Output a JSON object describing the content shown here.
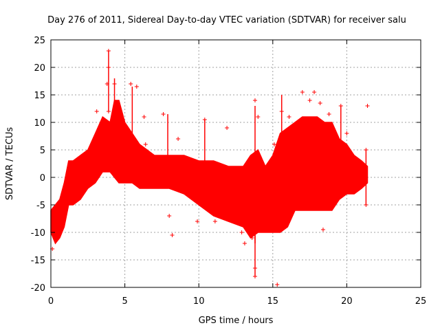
{
  "chart_data": {
    "type": "scatter",
    "title": "Day 276 of 2011, Sidereal Day-to-day VTEC variation (SDTVAR) for receiver salu",
    "xlabel": "GPS time / hours",
    "ylabel": "SDTVAR / TECUs",
    "xlim": [
      0,
      25
    ],
    "ylim": [
      -20,
      25
    ],
    "xticks": [
      0,
      5,
      10,
      15,
      20,
      25
    ],
    "yticks": [
      -20,
      -15,
      -10,
      -5,
      0,
      5,
      10,
      15,
      20,
      25
    ],
    "xtick_labels": [
      "0",
      "5",
      "10",
      "15",
      "20",
      "25"
    ],
    "ytick_labels": [
      "-20",
      "-15",
      "-10",
      "-5",
      "0",
      "5",
      "10",
      "15",
      "20",
      "25"
    ],
    "grid": true,
    "color": "#ff0000",
    "marker": "+",
    "series": [
      {
        "name": "SDTVAR",
        "band_envelope": {
          "x": [
            0,
            0.3,
            0.6,
            0.9,
            1.2,
            1.5,
            2.0,
            2.5,
            3.0,
            3.5,
            4.0,
            4.3,
            4.6,
            5.0,
            5.5,
            6.0,
            6.5,
            7.0,
            7.5,
            8.0,
            9.0,
            10.0,
            10.5,
            11.0,
            12.0,
            13.0,
            13.5,
            14.0,
            14.5,
            15.0,
            15.5,
            16.0,
            16.5,
            17.0,
            17.5,
            18.0,
            18.5,
            19.0,
            19.5,
            20.0,
            20.5,
            21.0,
            21.4
          ],
          "upper": [
            -6,
            -5,
            -4,
            -1,
            3,
            3,
            4,
            5,
            8,
            11,
            10,
            14,
            14,
            10,
            8,
            6,
            5,
            4,
            4,
            4,
            4,
            3,
            3,
            3,
            2,
            2,
            4,
            5,
            2,
            4,
            8,
            9,
            10,
            11,
            11,
            11,
            10,
            10,
            7,
            6,
            4,
            3,
            2
          ],
          "lower": [
            -10,
            -12,
            -11,
            -9,
            -5,
            -5,
            -4,
            -2,
            -1,
            1,
            1,
            0,
            -1,
            -1,
            -1,
            -2,
            -2,
            -2,
            -2,
            -2,
            -3,
            -5,
            -6,
            -7,
            -8,
            -9,
            -11,
            -10,
            -10,
            -10,
            -10,
            -9,
            -6,
            -6,
            -6,
            -6,
            -6,
            -6,
            -4,
            -3,
            -3,
            -2,
            -1
          ]
        },
        "outliers": [
          {
            "x": 3.9,
            "y": 23
          },
          {
            "x": 3.9,
            "y": 20
          },
          {
            "x": 3.8,
            "y": 17
          },
          {
            "x": 4.3,
            "y": 17
          },
          {
            "x": 3.1,
            "y": 12
          },
          {
            "x": 3.9,
            "y": 12
          },
          {
            "x": 5.4,
            "y": 17
          },
          {
            "x": 5.8,
            "y": 16.5
          },
          {
            "x": 6.3,
            "y": 11
          },
          {
            "x": 6.4,
            "y": 6
          },
          {
            "x": 7.6,
            "y": 11.5
          },
          {
            "x": 8.6,
            "y": 7
          },
          {
            "x": 8.0,
            "y": -7
          },
          {
            "x": 8.2,
            "y": -10.5
          },
          {
            "x": 9.9,
            "y": -8
          },
          {
            "x": 10.4,
            "y": 10.5
          },
          {
            "x": 11.9,
            "y": 9
          },
          {
            "x": 11.1,
            "y": -8
          },
          {
            "x": 12.7,
            "y": -8
          },
          {
            "x": 12.9,
            "y": -10
          },
          {
            "x": 13.1,
            "y": -12
          },
          {
            "x": 13.6,
            "y": -11
          },
          {
            "x": 13.8,
            "y": 14
          },
          {
            "x": 14.0,
            "y": 11
          },
          {
            "x": 13.8,
            "y": -16.5
          },
          {
            "x": 13.8,
            "y": -18
          },
          {
            "x": 15.3,
            "y": -19.5
          },
          {
            "x": 15.1,
            "y": 6
          },
          {
            "x": 15.6,
            "y": 12
          },
          {
            "x": 16.1,
            "y": 11
          },
          {
            "x": 17.0,
            "y": 15.5
          },
          {
            "x": 17.5,
            "y": 14
          },
          {
            "x": 17.8,
            "y": 15.5
          },
          {
            "x": 18.2,
            "y": 13.5
          },
          {
            "x": 18.4,
            "y": -9.5
          },
          {
            "x": 18.8,
            "y": 11.5
          },
          {
            "x": 19.6,
            "y": 13
          },
          {
            "x": 20.0,
            "y": 8
          },
          {
            "x": 21.4,
            "y": 13
          },
          {
            "x": 21.3,
            "y": 5
          },
          {
            "x": 21.3,
            "y": -5
          },
          {
            "x": 0.1,
            "y": -13
          }
        ],
        "spikes": [
          {
            "x": 3.9,
            "from": 12,
            "to": 23
          },
          {
            "x": 4.3,
            "from": 11,
            "to": 18
          },
          {
            "x": 5.5,
            "from": 8,
            "to": 16.5
          },
          {
            "x": 7.9,
            "from": 4,
            "to": 11.5
          },
          {
            "x": 10.4,
            "from": 3,
            "to": 10.5
          },
          {
            "x": 13.8,
            "from": -12,
            "to": 13
          },
          {
            "x": 13.8,
            "from": -18,
            "to": -10
          },
          {
            "x": 15.6,
            "from": 6,
            "to": 15
          },
          {
            "x": 19.6,
            "from": 6,
            "to": 13
          },
          {
            "x": 21.3,
            "from": -5,
            "to": 5
          }
        ]
      }
    ]
  }
}
